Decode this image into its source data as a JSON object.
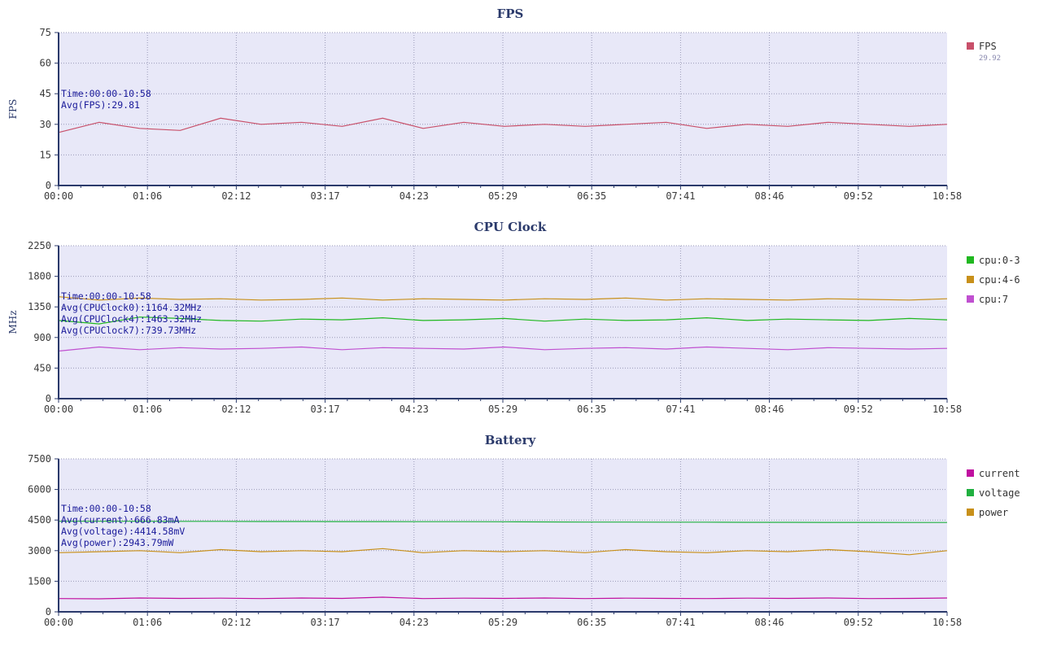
{
  "chart_data": [
    {
      "type": "line",
      "title": "FPS",
      "ylabel": "FPS",
      "ylim": [
        0,
        75
      ],
      "yticks": [
        "0",
        "15",
        "30",
        "45",
        "60",
        "75"
      ],
      "xticks": [
        "00:00",
        "01:06",
        "02:12",
        "03:17",
        "04:23",
        "05:29",
        "06:35",
        "07:41",
        "08:46",
        "09:52",
        "10:58"
      ],
      "grid": true,
      "legend_position": "right",
      "annotations": [
        "Time:00:00-10:58",
        "Avg(FPS):29.81"
      ],
      "series": [
        {
          "name": "FPS",
          "legend_value": "29.92",
          "color": "#c8506a",
          "x": [
            "00:00",
            "00:30",
            "01:00",
            "01:30",
            "02:00",
            "02:30",
            "03:00",
            "03:30",
            "04:00",
            "04:30",
            "05:00",
            "05:30",
            "06:00",
            "06:30",
            "07:00",
            "07:30",
            "08:00",
            "08:30",
            "09:00",
            "09:30",
            "10:00",
            "10:30",
            "10:58"
          ],
          "values": [
            26,
            31,
            28,
            27,
            33,
            30,
            31,
            29,
            33,
            28,
            31,
            29,
            30,
            29,
            30,
            31,
            28,
            30,
            29,
            31,
            30,
            29,
            30
          ]
        }
      ]
    },
    {
      "type": "line",
      "title": "CPU Clock",
      "ylabel": "MHz",
      "ylim": [
        0,
        2250
      ],
      "yticks": [
        "0",
        "450",
        "900",
        "1350",
        "1800",
        "2250"
      ],
      "xticks": [
        "00:00",
        "01:06",
        "02:12",
        "03:17",
        "04:23",
        "05:29",
        "06:35",
        "07:41",
        "08:46",
        "09:52",
        "10:58"
      ],
      "grid": true,
      "legend_position": "right",
      "annotations": [
        "Time:00:00-10:58",
        "Avg(CPUClock0):1164.32MHz",
        "Avg(CPUClock4):1463.32MHz",
        "Avg(CPUClock7):739.73MHz"
      ],
      "series": [
        {
          "name": "cpu:0-3",
          "color": "#20b820",
          "x": [
            "00:00",
            "00:30",
            "01:00",
            "01:30",
            "02:00",
            "02:30",
            "03:00",
            "03:30",
            "04:00",
            "04:30",
            "05:00",
            "05:30",
            "06:00",
            "06:30",
            "07:00",
            "07:30",
            "08:00",
            "08:30",
            "09:00",
            "09:30",
            "10:00",
            "10:30",
            "10:58"
          ],
          "values": [
            1150,
            1100,
            1200,
            1180,
            1150,
            1140,
            1170,
            1160,
            1190,
            1150,
            1160,
            1180,
            1140,
            1170,
            1150,
            1160,
            1190,
            1150,
            1170,
            1160,
            1150,
            1180,
            1160
          ]
        },
        {
          "name": "cpu:4-6",
          "color": "#c8901a",
          "x": [
            "00:00",
            "00:30",
            "01:00",
            "01:30",
            "02:00",
            "02:30",
            "03:00",
            "03:30",
            "04:00",
            "04:30",
            "05:00",
            "05:30",
            "06:00",
            "06:30",
            "07:00",
            "07:30",
            "08:00",
            "08:30",
            "09:00",
            "09:30",
            "10:00",
            "10:30",
            "10:58"
          ],
          "values": [
            1500,
            1450,
            1480,
            1460,
            1470,
            1450,
            1460,
            1480,
            1450,
            1470,
            1460,
            1450,
            1470,
            1460,
            1480,
            1450,
            1470,
            1460,
            1450,
            1470,
            1460,
            1450,
            1470
          ]
        },
        {
          "name": "cpu:7",
          "color": "#c050d0",
          "x": [
            "00:00",
            "00:30",
            "01:00",
            "01:30",
            "02:00",
            "02:30",
            "03:00",
            "03:30",
            "04:00",
            "04:30",
            "05:00",
            "05:30",
            "06:00",
            "06:30",
            "07:00",
            "07:30",
            "08:00",
            "08:30",
            "09:00",
            "09:30",
            "10:00",
            "10:30",
            "10:58"
          ],
          "values": [
            700,
            760,
            720,
            750,
            730,
            740,
            760,
            720,
            750,
            740,
            730,
            760,
            720,
            740,
            750,
            730,
            760,
            740,
            720,
            750,
            740,
            730,
            740
          ]
        }
      ]
    },
    {
      "type": "line",
      "title": "Battery",
      "ylabel": "",
      "ylim": [
        0,
        7500
      ],
      "yticks": [
        "0",
        "1500",
        "3000",
        "4500",
        "6000",
        "7500"
      ],
      "xticks": [
        "00:00",
        "01:06",
        "02:12",
        "03:17",
        "04:23",
        "05:29",
        "06:35",
        "07:41",
        "08:46",
        "09:52",
        "10:58"
      ],
      "grid": true,
      "legend_position": "right",
      "annotations": [
        "Time:00:00-10:58",
        "Avg(current):666.83mA",
        "Avg(voltage):4414.58mV",
        "Avg(power):2943.79mW"
      ],
      "series": [
        {
          "name": "current",
          "color": "#c010a0",
          "x": [
            "00:00",
            "00:30",
            "01:00",
            "01:30",
            "02:00",
            "02:30",
            "03:00",
            "03:30",
            "04:00",
            "04:30",
            "05:00",
            "05:30",
            "06:00",
            "06:30",
            "07:00",
            "07:30",
            "08:00",
            "08:30",
            "09:00",
            "09:30",
            "10:00",
            "10:30",
            "10:58"
          ],
          "values": [
            650,
            640,
            680,
            660,
            670,
            650,
            680,
            660,
            720,
            650,
            670,
            660,
            680,
            650,
            670,
            660,
            650,
            670,
            660,
            680,
            650,
            660,
            680
          ]
        },
        {
          "name": "voltage",
          "color": "#20b040",
          "x": [
            "00:00",
            "00:30",
            "01:00",
            "01:30",
            "02:00",
            "02:30",
            "03:00",
            "03:30",
            "04:00",
            "04:30",
            "05:00",
            "05:30",
            "06:00",
            "06:30",
            "07:00",
            "07:30",
            "08:00",
            "08:30",
            "09:00",
            "09:30",
            "10:00",
            "10:30",
            "10:58"
          ],
          "values": [
            4440,
            4440,
            4440,
            4435,
            4435,
            4430,
            4430,
            4425,
            4425,
            4420,
            4420,
            4415,
            4410,
            4400,
            4400,
            4395,
            4395,
            4390,
            4390,
            4385,
            4385,
            4380,
            4380
          ]
        },
        {
          "name": "power",
          "color": "#c8901a",
          "x": [
            "00:00",
            "00:30",
            "01:00",
            "01:30",
            "02:00",
            "02:30",
            "03:00",
            "03:30",
            "04:00",
            "04:30",
            "05:00",
            "05:30",
            "06:00",
            "06:30",
            "07:00",
            "07:30",
            "08:00",
            "08:30",
            "09:00",
            "09:30",
            "10:00",
            "10:30",
            "10:58"
          ],
          "values": [
            2900,
            2950,
            3000,
            2900,
            3050,
            2950,
            3000,
            2950,
            3100,
            2900,
            3000,
            2950,
            3000,
            2900,
            3050,
            2950,
            2900,
            3000,
            2950,
            3050,
            2950,
            2800,
            3000
          ]
        }
      ]
    }
  ]
}
